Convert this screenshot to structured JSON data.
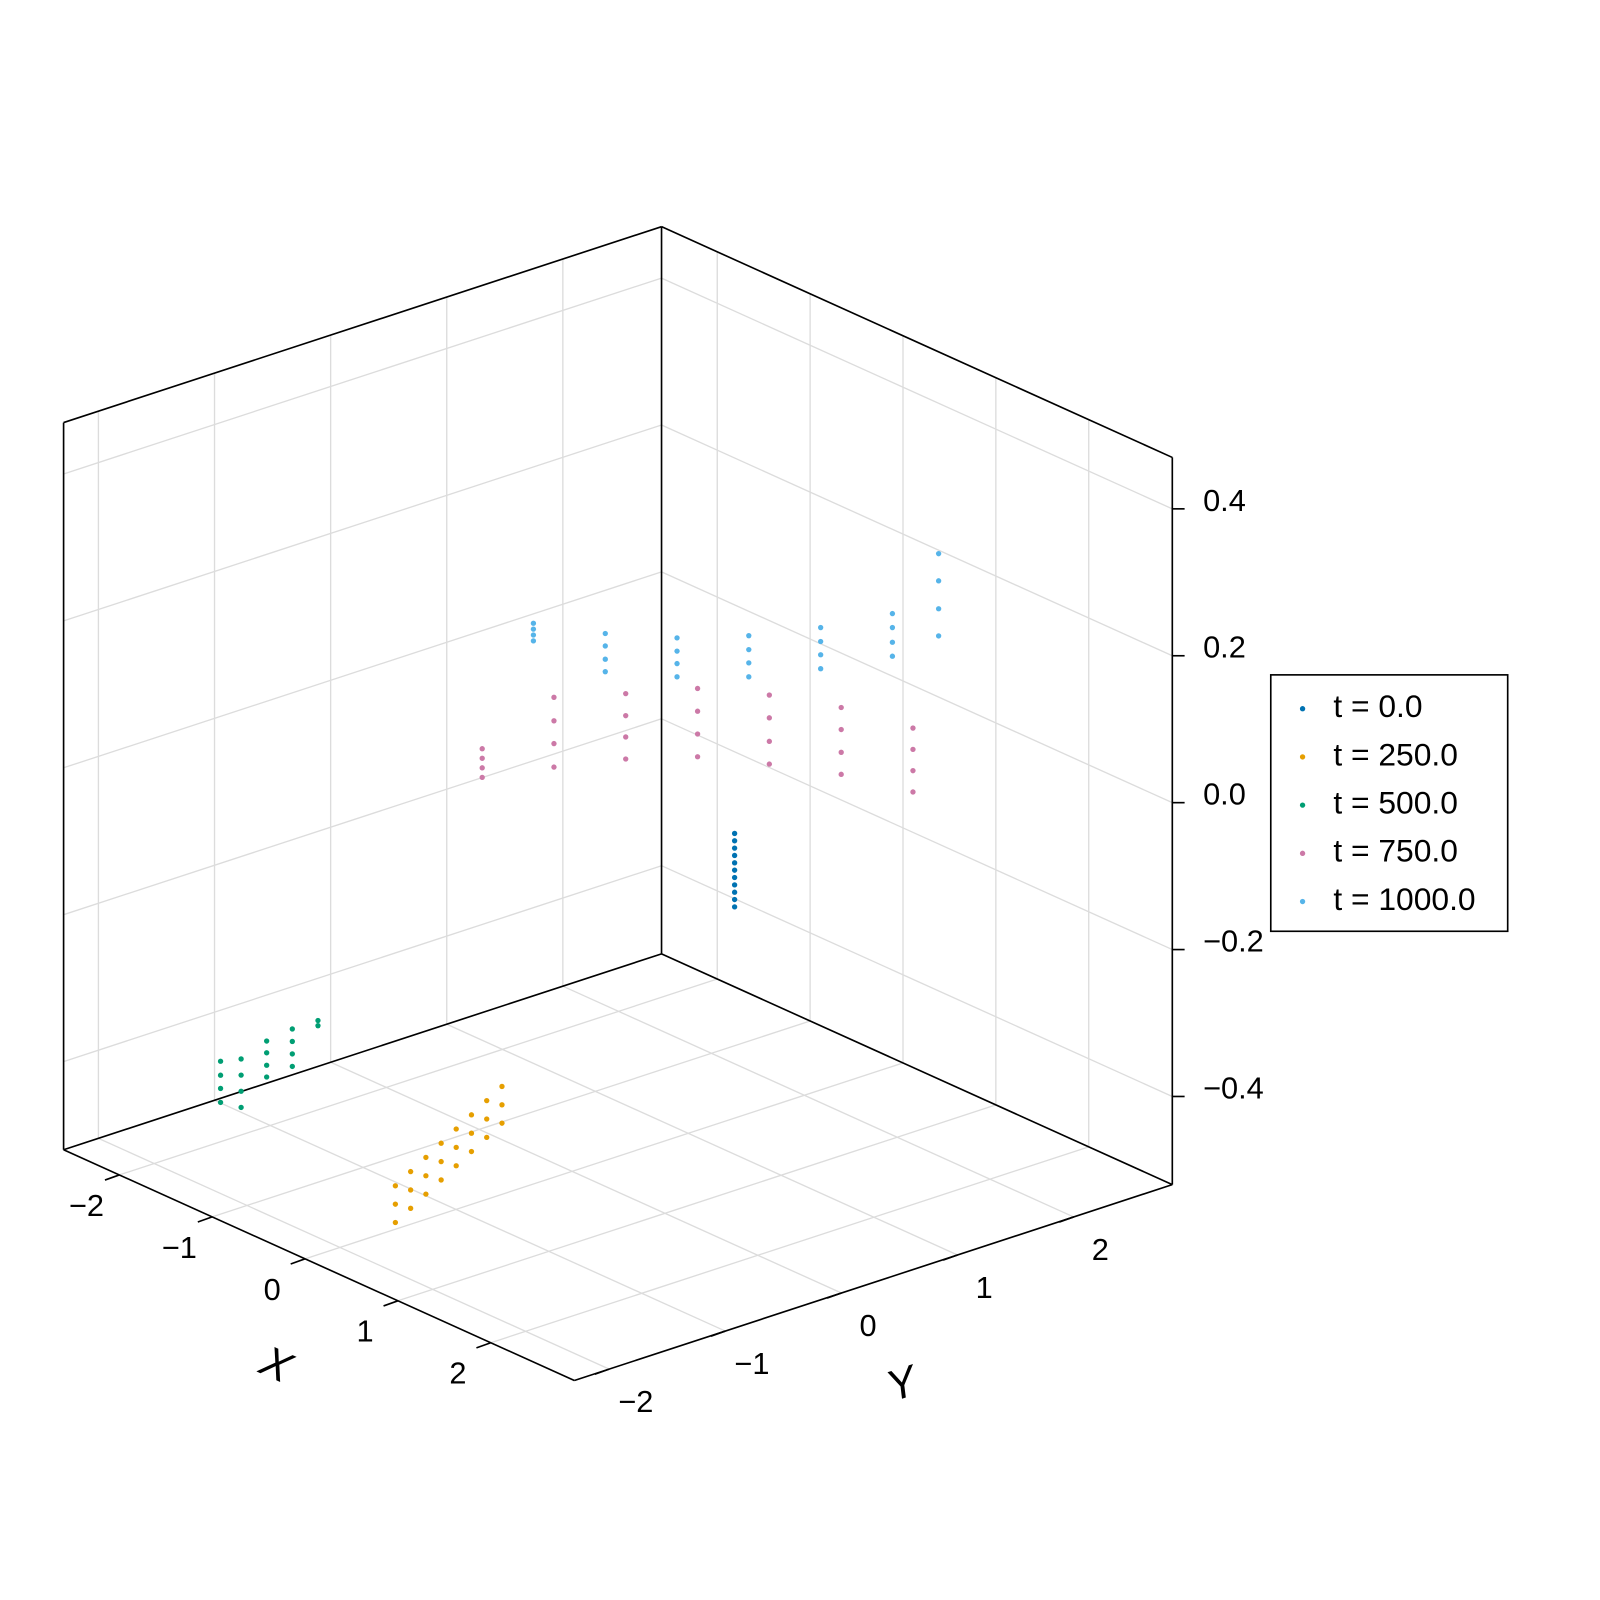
{
  "chart_data": {
    "type": "scatter3d",
    "x_label": "X",
    "y_label": "Y",
    "xlim": [
      -2.6,
      2.9
    ],
    "ylim": [
      -2.3,
      2.85
    ],
    "zlim": [
      -0.52,
      0.47
    ],
    "xticks": [
      {
        "value": -2,
        "label": "−2"
      },
      {
        "value": -1,
        "label": "−1"
      },
      0,
      1,
      2
    ],
    "yticks": [
      {
        "value": -2,
        "label": "−2"
      },
      {
        "value": -1,
        "label": "−1"
      },
      0,
      1,
      2
    ],
    "zticks": [
      {
        "value": -0.4,
        "label": "−0.4"
      },
      {
        "value": -0.2,
        "label": "−0.2"
      },
      {
        "value": 0,
        "label": "0.0"
      },
      0.2,
      0.4
    ],
    "grid": true,
    "series": [
      {
        "name": "t = 0.0",
        "color": "#0072b2",
        "x": [
          1.75,
          1.75,
          1.75,
          1.75,
          1.75,
          1.75,
          1.75,
          1.75,
          1.75,
          1.75,
          1.75
        ],
        "y": [
          0,
          0,
          0,
          0,
          0,
          0,
          0,
          0,
          0,
          0,
          0
        ],
        "z": [
          0.04,
          0.03,
          0.02,
          0.01,
          0,
          -0.01,
          -0.02,
          -0.03,
          -0.04,
          -0.05,
          -0.06
        ]
      },
      {
        "name": "t = 250.0",
        "color": "#e69f00",
        "x": [
          0.11,
          -0.017,
          -0.144,
          -0.271,
          -0.399,
          -0.526,
          -0.653,
          -0.78,
          0.11,
          -0.017,
          -0.144,
          -0.271,
          -0.399,
          -0.526,
          -0.653,
          -0.78,
          0.11,
          -0.017,
          -0.144,
          -0.271,
          -0.399,
          -0.526,
          -0.653,
          -0.78
        ],
        "y": [
          -1.61,
          -1.377,
          -1.144,
          -0.911,
          -0.679,
          -0.446,
          -0.213,
          0.02,
          -1.61,
          -1.377,
          -1.144,
          -0.911,
          -0.679,
          -0.446,
          -0.213,
          0.02,
          -1.61,
          -1.377,
          -1.144,
          -0.911,
          -0.679,
          -0.446,
          -0.213,
          0.02
        ],
        "z": [
          -0.5,
          -0.5,
          -0.5,
          -0.5,
          -0.5,
          -0.5,
          -0.5,
          -0.5,
          -0.475,
          -0.475,
          -0.475,
          -0.475,
          -0.475,
          -0.475,
          -0.475,
          -0.475,
          -0.45,
          -0.45,
          -0.45,
          -0.45,
          -0.45,
          -0.45,
          -0.45,
          -0.45
        ]
      },
      {
        "name": "t = 500.0",
        "color": "#009e73",
        "x": [
          -2.3,
          -2.3,
          -2.3,
          -2.3,
          -2.3,
          -2.3,
          -2.3,
          -2.3,
          -2.3,
          -2.3,
          -2.3,
          -2.3,
          -2.3,
          -2.3,
          -2.3,
          -2.3,
          -2.3,
          -2.3
        ],
        "y": [
          -1.188,
          -1.188,
          -1.188,
          -1.188,
          -1.011,
          -1.011,
          -1.011,
          -1.011,
          -0.791,
          -0.791,
          -0.791,
          -0.791,
          -0.57,
          -0.57,
          -0.57,
          -0.57,
          -0.349,
          -0.349
        ],
        "z": [
          -0.44,
          -0.459,
          -0.477,
          -0.496,
          -0.446,
          -0.468,
          -0.49,
          -0.512,
          -0.433,
          -0.449,
          -0.466,
          -0.482,
          -0.428,
          -0.445,
          -0.462,
          -0.479,
          -0.428,
          -0.435
        ]
      },
      {
        "name": "t = 750.0",
        "color": "#cc79a7",
        "x": [
          1,
          1,
          1,
          1,
          1,
          1,
          1,
          1,
          1,
          1,
          1,
          1,
          1,
          1,
          1,
          1,
          1,
          1,
          1,
          1,
          1,
          1,
          1,
          1,
          1,
          1,
          1,
          1
        ],
        "y": [
          -1.574,
          -1.574,
          -1.574,
          -1.574,
          -0.956,
          -0.956,
          -0.956,
          -0.956,
          -0.338,
          -0.338,
          -0.338,
          -0.338,
          0.281,
          0.281,
          0.281,
          0.281,
          0.899,
          0.899,
          0.899,
          0.899,
          1.518,
          1.518,
          1.518,
          1.518,
          2.136,
          2.136,
          2.136,
          2.136
        ],
        "z": [
          0.155,
          0.168,
          0.181,
          0.194,
          0.137,
          0.169,
          0.2,
          0.232,
          0.116,
          0.146,
          0.175,
          0.205,
          0.087,
          0.118,
          0.149,
          0.18,
          0.045,
          0.076,
          0.108,
          0.139,
          -0.001,
          0.029,
          0.06,
          0.09,
          -0.057,
          -0.028,
          0.001,
          0.03
        ]
      },
      {
        "name": "t = 1000.0",
        "color": "#56b4e9",
        "x": [
          1,
          1,
          1,
          1,
          1,
          1,
          1,
          1,
          1,
          1,
          1,
          1,
          1,
          1,
          1,
          1,
          1,
          1,
          1,
          1,
          1,
          1,
          1,
          1,
          1,
          1,
          1,
          1
        ],
        "y": [
          -1.133,
          -1.133,
          -1.133,
          -1.133,
          -0.514,
          -0.514,
          -0.514,
          -0.514,
          0.104,
          0.104,
          0.104,
          0.104,
          0.722,
          0.722,
          0.722,
          0.722,
          1.341,
          1.341,
          1.341,
          1.341,
          1.959,
          1.959,
          1.959,
          1.959,
          2.357,
          2.357,
          2.357,
          2.357
        ],
        "z": [
          0.318,
          0.326,
          0.334,
          0.342,
          0.244,
          0.261,
          0.279,
          0.296,
          0.205,
          0.223,
          0.24,
          0.258,
          0.173,
          0.192,
          0.21,
          0.229,
          0.152,
          0.171,
          0.189,
          0.208,
          0.137,
          0.156,
          0.176,
          0.195,
          0.144,
          0.181,
          0.219,
          0.256
        ]
      }
    ]
  }
}
